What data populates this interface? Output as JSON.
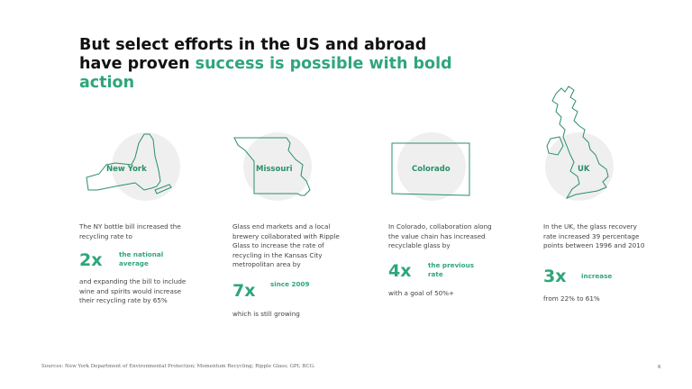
{
  "title": {
    "line1": "But select efforts in the US and abroad have proven ",
    "accent": "success is possible with bold action"
  },
  "columns": [
    {
      "region": "New York",
      "intro": "The NY bottle bill increased the recycling rate to",
      "multiplier": "2x",
      "multiplier_label": "the national average",
      "outro": "and expanding the bill to include wine and spirits would increase their recycling rate by 65%"
    },
    {
      "region": "Missouri",
      "intro": "Glass end markets and a local brewery collaborated with Ripple Glass to increase the rate of recycling in the Kansas City metropolitan area by",
      "multiplier": "7x",
      "multiplier_label": "since 2009",
      "outro": "which is still growing"
    },
    {
      "region": "Colorado",
      "intro": "In Colorado, collaboration along the value chain has increased recyclable glass by",
      "multiplier": "4x",
      "multiplier_label": "the previous rate",
      "outro": "with a goal of 50%+"
    },
    {
      "region": "UK",
      "intro": "In the UK, the glass recovery rate increased 39 percentage points between 1996 and 2010",
      "multiplier": "3x",
      "multiplier_label": "increase",
      "outro": "from 22% to 61%"
    }
  ],
  "footer": {
    "source": "Sources: New York Department of Environmental Protection; Momentum Recycling; Ripple Glass; GPI; BCG.",
    "page_number": "6"
  },
  "colors": {
    "accent": "#2ea67a",
    "map_stroke": "#2a8f68",
    "circle": "#efefef"
  }
}
